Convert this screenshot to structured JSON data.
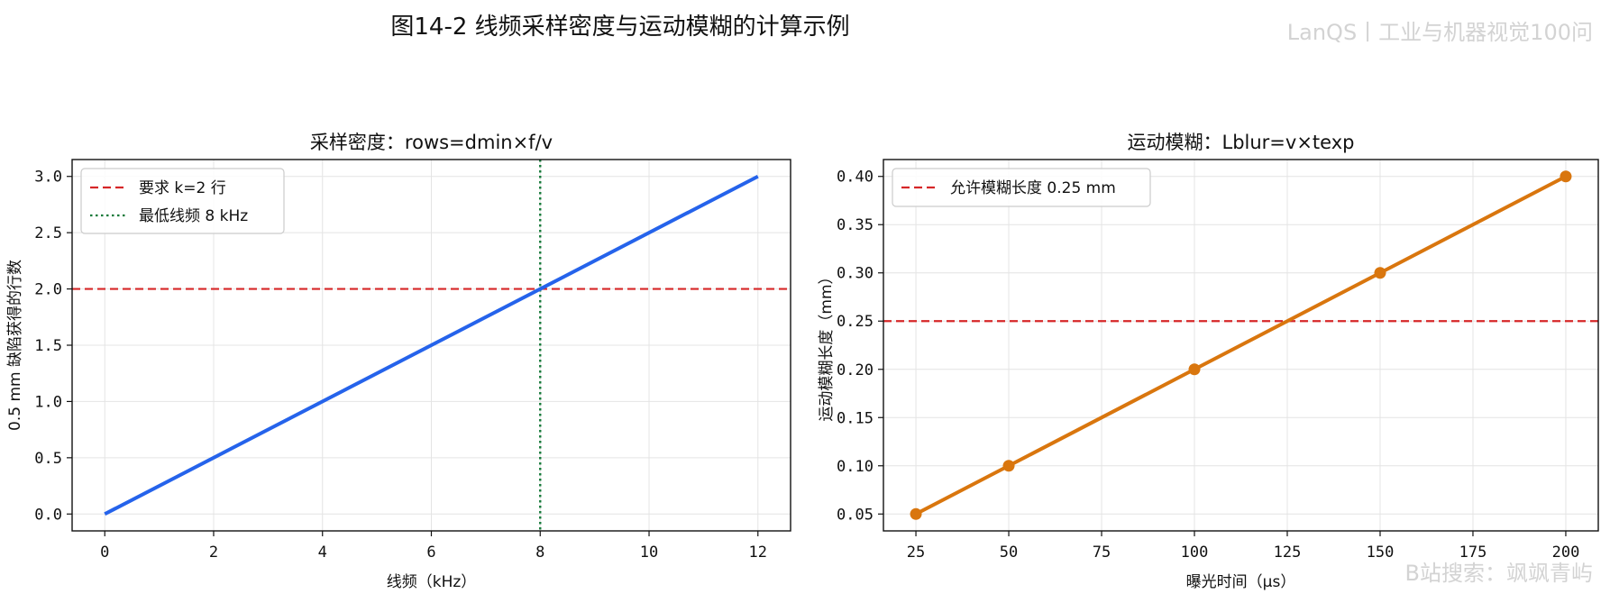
{
  "figure": {
    "title": "图14-2  线频采样密度与运动模糊的计算示例",
    "watermark_top": "LanQS丨工业与机器视觉100问",
    "watermark_bottom": "B站搜索：飒飒青屿"
  },
  "chart_data": [
    {
      "type": "line",
      "title": "采样密度：rows=dmin×f/v",
      "xlabel": "线频（kHz）",
      "ylabel": "0.5 mm 缺陷获得的行数",
      "xlim": [
        -0.6,
        12.6
      ],
      "ylim": [
        -0.15,
        3.15
      ],
      "xticks": [
        0,
        2,
        4,
        6,
        8,
        10,
        12
      ],
      "xtick_labels": [
        "0",
        "2",
        "4",
        "6",
        "8",
        "10",
        "12"
      ],
      "yticks": [
        0.0,
        0.5,
        1.0,
        1.5,
        2.0,
        2.5,
        3.0
      ],
      "ytick_labels": [
        "0.0",
        "0.5",
        "1.0",
        "1.5",
        "2.0",
        "2.5",
        "3.0"
      ],
      "grid": true,
      "legend_position": "upper-left",
      "series": [
        {
          "x": [
            0,
            12
          ],
          "y": [
            0,
            3.0
          ],
          "color": "#2563eb",
          "markers": false
        }
      ],
      "hlines": [
        {
          "y": 2.0,
          "name": "要求 k=2 行",
          "color": "#d62728",
          "style": "dashed"
        }
      ],
      "vlines": [
        {
          "x": 8,
          "name": "最低线频 8 kHz",
          "color": "#167a3a",
          "style": "dotted"
        }
      ]
    },
    {
      "type": "line",
      "title": "运动模糊：Lblur=v×texp",
      "xlabel": "曝光时间（μs）",
      "ylabel": "运动模糊长度（mm）",
      "xlim": [
        16.25,
        208.75
      ],
      "ylim": [
        0.0325,
        0.4175
      ],
      "xticks": [
        25,
        50,
        75,
        100,
        125,
        150,
        175,
        200
      ],
      "xtick_labels": [
        "25",
        "50",
        "75",
        "100",
        "125",
        "150",
        "175",
        "200"
      ],
      "yticks": [
        0.05,
        0.1,
        0.15,
        0.2,
        0.25,
        0.3,
        0.35,
        0.4
      ],
      "ytick_labels": [
        "0.05",
        "0.10",
        "0.15",
        "0.20",
        "0.25",
        "0.30",
        "0.35",
        "0.40"
      ],
      "grid": true,
      "legend_position": "upper-left",
      "series": [
        {
          "x": [
            25,
            50,
            100,
            150,
            200
          ],
          "y": [
            0.05,
            0.1,
            0.2,
            0.3,
            0.4
          ],
          "color": "#d9760e",
          "markers": true
        }
      ],
      "hlines": [
        {
          "y": 0.25,
          "name": "允许模糊长度 0.25 mm",
          "color": "#d62728",
          "style": "dashed"
        }
      ],
      "vlines": []
    }
  ]
}
